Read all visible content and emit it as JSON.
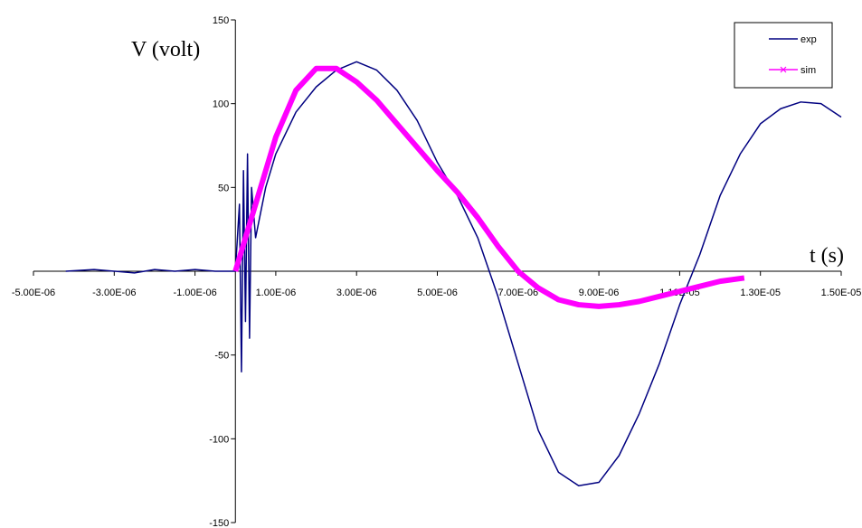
{
  "chart_data": {
    "type": "line",
    "x_label": "t (s)",
    "y_label": "V (volt)",
    "xlim": [
      -5e-06,
      1.5e-05
    ],
    "ylim": [
      -150,
      150
    ],
    "xticks": [
      {
        "value": -5e-06,
        "label": "-5.00E-06"
      },
      {
        "value": -3e-06,
        "label": "-3.00E-06"
      },
      {
        "value": -1e-06,
        "label": "-1.00E-06"
      },
      {
        "value": 1e-06,
        "label": "1.00E-06"
      },
      {
        "value": 3e-06,
        "label": "3.00E-06"
      },
      {
        "value": 5e-06,
        "label": "5.00E-06"
      },
      {
        "value": 7e-06,
        "label": "7.00E-06"
      },
      {
        "value": 9e-06,
        "label": "9.00E-06"
      },
      {
        "value": 1.1e-05,
        "label": "1.10E-05"
      },
      {
        "value": 1.3e-05,
        "label": "1.30E-05"
      },
      {
        "value": 1.5e-05,
        "label": "1.50E-05"
      }
    ],
    "yticks": [
      150,
      100,
      50,
      -50,
      -100,
      -150
    ],
    "legend": "top-right",
    "series": [
      {
        "name": "exp",
        "color": "#000080",
        "x": [
          -4.2e-06,
          -3.5e-06,
          -3e-06,
          -2.5e-06,
          -2e-06,
          -1.5e-06,
          -1e-06,
          -5e-07,
          0,
          1e-07,
          1.5e-07,
          2e-07,
          2.5e-07,
          3e-07,
          3.5e-07,
          4e-07,
          5e-07,
          7.5e-07,
          1e-06,
          1.5e-06,
          2e-06,
          2.5e-06,
          3e-06,
          3.5e-06,
          4e-06,
          4.5e-06,
          5e-06,
          5.5e-06,
          6e-06,
          6.5e-06,
          7e-06,
          7.5e-06,
          8e-06,
          8.5e-06,
          9e-06,
          9.5e-06,
          1e-05,
          1.05e-05,
          1.1e-05,
          1.15e-05,
          1.2e-05,
          1.25e-05,
          1.3e-05,
          1.35e-05,
          1.4e-05,
          1.45e-05,
          1.5e-05
        ],
        "values": [
          0,
          1,
          0,
          -1,
          1,
          0,
          1,
          0,
          0,
          40,
          -60,
          60,
          -30,
          70,
          -40,
          50,
          20,
          50,
          70,
          95,
          110,
          120,
          125,
          120,
          108,
          90,
          65,
          45,
          20,
          -15,
          -55,
          -95,
          -120,
          -128,
          -126,
          -110,
          -85,
          -55,
          -20,
          10,
          45,
          70,
          88,
          97,
          101,
          100,
          92
        ]
      },
      {
        "name": "sim",
        "color": "#ff00ff",
        "x": [
          0,
          5e-07,
          1e-06,
          1.5e-06,
          2e-06,
          2.5e-06,
          3e-06,
          3.5e-06,
          4e-06,
          4.5e-06,
          5e-06,
          5.5e-06,
          6e-06,
          6.5e-06,
          7e-06,
          7.5e-06,
          8e-06,
          8.5e-06,
          9e-06,
          9.5e-06,
          1e-05,
          1.05e-05,
          1.1e-05,
          1.15e-05,
          1.2e-05,
          1.26e-05
        ],
        "values": [
          0,
          40,
          80,
          108,
          121,
          121,
          113,
          102,
          88,
          74,
          60,
          47,
          32,
          15,
          0,
          -10,
          -17,
          -20,
          -21,
          -20,
          -18,
          -15,
          -12,
          -9,
          -6,
          -4
        ]
      }
    ]
  }
}
